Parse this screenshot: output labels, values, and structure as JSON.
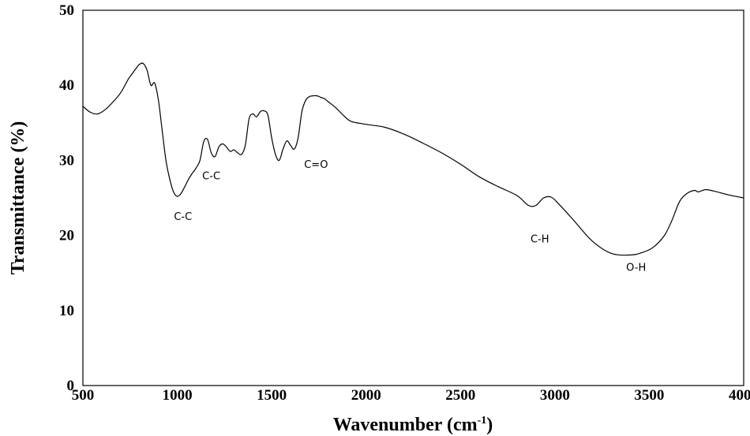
{
  "chart_data": {
    "type": "line",
    "title": "",
    "xlabel": "Wavenumber (cm",
    "xlabel_sup": "-1",
    "xlabel_end": ")",
    "ylabel": "Transmittance (%)",
    "xlim": [
      500,
      4000
    ],
    "ylim": [
      0,
      50
    ],
    "xticks": [
      "500",
      "1000",
      "1500",
      "2000",
      "2500",
      "3000",
      "3500",
      "4000"
    ],
    "yticks": [
      "0",
      "10",
      "20",
      "30",
      "40",
      "50"
    ],
    "grid": false,
    "legend": "none",
    "line_color": "#000000",
    "series": [
      {
        "x": [
          500,
          540,
          580,
          620,
          660,
          700,
          740,
          760,
          780,
          800,
          820,
          840,
          860,
          880,
          900,
          920,
          940,
          960,
          980,
          1000,
          1020,
          1040,
          1060,
          1080,
          1100,
          1120,
          1140,
          1160,
          1180,
          1200,
          1220,
          1240,
          1260,
          1280,
          1300,
          1320,
          1340,
          1360,
          1380,
          1400,
          1420,
          1440,
          1460,
          1480,
          1500,
          1520,
          1540,
          1560,
          1580,
          1600,
          1620,
          1640,
          1660,
          1680,
          1700,
          1720,
          1740,
          1760,
          1780,
          1800,
          1840,
          1880,
          1920,
          2000,
          2100,
          2200,
          2300,
          2400,
          2500,
          2600,
          2700,
          2800,
          2860,
          2900,
          2940,
          2980,
          3020,
          3100,
          3200,
          3300,
          3400,
          3460,
          3520,
          3580,
          3620,
          3660,
          3700,
          3740,
          3760,
          3800,
          3860,
          3920,
          4000
        ],
        "y": [
          37.2,
          36.4,
          36.2,
          36.8,
          37.8,
          39.0,
          40.8,
          41.5,
          42.2,
          42.8,
          42.9,
          42.0,
          40.0,
          40.3,
          38.0,
          34.0,
          30.0,
          27.5,
          25.8,
          25.2,
          25.6,
          26.5,
          27.5,
          28.3,
          29.0,
          30.0,
          32.5,
          32.8,
          31.0,
          30.5,
          31.8,
          32.2,
          31.8,
          31.2,
          31.4,
          31.0,
          30.8,
          32.0,
          35.5,
          36.2,
          35.8,
          36.5,
          36.6,
          36.0,
          33.0,
          30.8,
          30.0,
          31.5,
          32.6,
          32.0,
          31.5,
          33.0,
          36.5,
          38.0,
          38.5,
          38.6,
          38.6,
          38.4,
          38.2,
          37.8,
          37.0,
          36.0,
          35.2,
          34.8,
          34.4,
          33.5,
          32.3,
          31.0,
          29.5,
          27.8,
          26.5,
          25.3,
          24.0,
          24.0,
          25.0,
          25.1,
          24.2,
          22.0,
          19.2,
          17.6,
          17.4,
          17.7,
          18.4,
          20.0,
          22.0,
          24.5,
          25.6,
          26.0,
          25.8,
          26.1,
          25.8,
          25.4,
          25.0
        ]
      }
    ],
    "annotations": [
      {
        "text": "C-C",
        "x": 1030,
        "y": 22.6
      },
      {
        "text": "C-C",
        "x": 1180,
        "y": 28.0
      },
      {
        "text": "C=O",
        "x": 1735,
        "y": 29.5
      },
      {
        "text": "C-H",
        "x": 2920,
        "y": 19.6
      },
      {
        "text": "O-H",
        "x": 3430,
        "y": 15.8
      }
    ]
  }
}
